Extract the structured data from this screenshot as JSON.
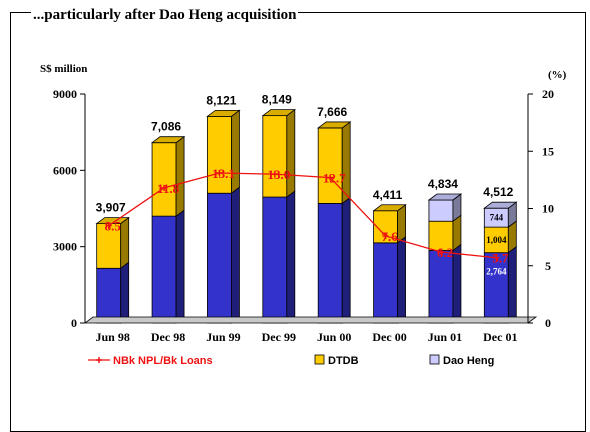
{
  "header": {
    "title": "...particularly after Dao Heng acquisition"
  },
  "chart_data": {
    "type": "bar",
    "stacked": true,
    "unit_left": "S$ million",
    "unit_right": "(%)",
    "categories": [
      "Jun 98",
      "Dec 98",
      "Jun 99",
      "Dec 99",
      "Jun 00",
      "Dec 00",
      "Jun 01",
      "Dec 01"
    ],
    "series": [
      {
        "values": [
          2150,
          4200,
          5100,
          4950,
          4700,
          3150,
          2850,
          2764
        ],
        "color": "#3333cc"
      },
      {
        "name": "DTDB",
        "values": [
          1757,
          2886,
          3021,
          3199,
          2966,
          1261,
          1150,
          1004
        ],
        "color": "#ffcc00"
      },
      {
        "name": "Dao Heng",
        "values": [
          0,
          0,
          0,
          0,
          0,
          0,
          834,
          744
        ],
        "color": "#ccccff"
      }
    ],
    "totals": [
      "3,907",
      "7,086",
      "8,121",
      "8,149",
      "7,666",
      "4,411",
      "4,834",
      "4,512"
    ],
    "segment_labels": [
      {
        "category": "Dec 01",
        "series": 2,
        "text": "744"
      },
      {
        "category": "Dec 01",
        "series": 1,
        "text": "1,004"
      },
      {
        "category": "Dec 01",
        "series": 0,
        "text": "2,764"
      }
    ],
    "line_series": {
      "name": "NBk NPL/Bk Loans",
      "values": [
        8.5,
        11.8,
        13.1,
        13.0,
        12.7,
        7.6,
        6.2,
        5.7
      ],
      "labels": [
        "8.5",
        "11.8",
        "13.1",
        "13.0",
        "12.7",
        "7.6",
        "6.2",
        "5.7"
      ],
      "color": "#ee1111"
    },
    "y_left": {
      "min": 0,
      "max": 9000,
      "ticks": [
        "0",
        "3000",
        "6000",
        "9000"
      ]
    },
    "y_right": {
      "min": 0,
      "max": 20,
      "ticks": [
        "0",
        "5",
        "10",
        "15",
        "20"
      ]
    },
    "legend": {
      "position": "bottom",
      "items": [
        {
          "label": "NBk NPL/Bk Loans",
          "kind": "line",
          "color": "#ee1111"
        },
        {
          "label": "DTDB",
          "kind": "box",
          "color": "#ffcc00"
        },
        {
          "label": "Dao Heng",
          "kind": "box",
          "color": "#ccccff"
        }
      ]
    },
    "grid": false
  }
}
